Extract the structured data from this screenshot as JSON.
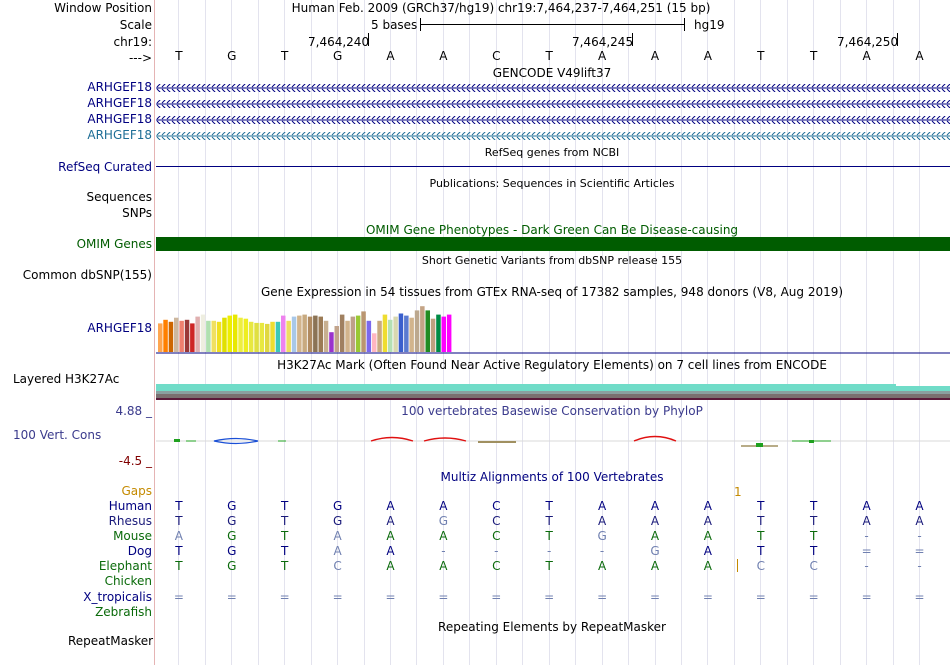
{
  "colors": {
    "navy": "#000080",
    "teal": "#1e6e96",
    "omim": "#005c00",
    "h3k27": "#70dcc8",
    "cons_label": "#3a3a8c",
    "cons_neg": "#800000",
    "gaps": "#c48a00",
    "green_species": "#0a6a0a",
    "rhesus": "#1a1a7a"
  },
  "header": {
    "window_position_label": "Window Position",
    "window_position_value": "Human Feb. 2009 (GRCh37/hg19)    chr19:7,464,237-7,464,251 (15 bp)",
    "scale_label": "Scale",
    "scale_value": "5 bases",
    "scale_assembly": "hg19",
    "chrom_label": "chr19:",
    "coords": [
      "7,464,240",
      "7,464,245",
      "7,464,250"
    ],
    "strand_label": "--->",
    "bases": [
      "T",
      "G",
      "T",
      "G",
      "A",
      "A",
      "C",
      "T",
      "A",
      "A",
      "A",
      "T",
      "T",
      "A",
      "A"
    ]
  },
  "gencode": {
    "title": "GENCODE V49lift37",
    "rows": [
      "ARHGEF18",
      "ARHGEF18",
      "ARHGEF18",
      "ARHGEF18"
    ]
  },
  "refseq": {
    "label": "RefSeq Curated",
    "title": "RefSeq genes from NCBI"
  },
  "publications": {
    "label": "Sequences",
    "title": "Publications: Sequences in Scientific Articles"
  },
  "snps_label": "SNPs",
  "omim": {
    "label": "OMIM Genes",
    "title": "OMIM Gene Phenotypes - Dark Green Can Be Disease-causing"
  },
  "dbsnp": {
    "label": "Common dbSNP(155)",
    "title": "Short Genetic Variants from dbSNP release 155"
  },
  "gtex": {
    "label": "ARHGEF18",
    "title": "Gene Expression in 54 tissues from GTEx RNA-seq of 17382 samples, 948 donors (V8, Aug 2019)",
    "levels": [
      0.55,
      0.62,
      0.58,
      0.66,
      0.6,
      0.62,
      0.55,
      0.68,
      0.72,
      0.6,
      0.6,
      0.58,
      0.66,
      0.7,
      0.72,
      0.66,
      0.64,
      0.58,
      0.56,
      0.56,
      0.54,
      0.58,
      0.58,
      0.7,
      0.6,
      0.68,
      0.7,
      0.72,
      0.68,
      0.7,
      0.68,
      0.6,
      0.38,
      0.5,
      0.72,
      0.6,
      0.68,
      0.7,
      0.78,
      0.6,
      0.36,
      0.6,
      0.72,
      0.62,
      0.68,
      0.74,
      0.7,
      0.66,
      0.8,
      0.88,
      0.8,
      0.64,
      0.72,
      0.68,
      0.72
    ]
  },
  "h3k27ac": {
    "label": "Layered H3K27Ac",
    "title": "H3K27Ac Mark (Often Found Near Active Regulatory Elements) on 7 cell lines from ENCODE"
  },
  "phylop": {
    "label": "100 Vert. Cons",
    "max_label": "4.88 _",
    "min_label": "-4.5 _",
    "title": "100 vertebrates Basewise Conservation by PhyloP"
  },
  "multiz": {
    "title": "Multiz Alignments of 100 Vertebrates",
    "gaps_label": "Gaps",
    "gaps_marker": "1",
    "species": [
      {
        "name": "Human",
        "bases": [
          "T",
          "G",
          "T",
          "G",
          "A",
          "A",
          "C",
          "T",
          "A",
          "A",
          "A",
          "T",
          "T",
          "A",
          "A"
        ]
      },
      {
        "name": "Rhesus",
        "bases": [
          "T",
          "G",
          "T",
          "G",
          "A",
          "G",
          "C",
          "T",
          "A",
          "A",
          "A",
          "T",
          "T",
          "A",
          "A"
        ]
      },
      {
        "name": "Mouse",
        "bases": [
          "A",
          "G",
          "T",
          "A",
          "A",
          "A",
          "C",
          "T",
          "G",
          "A",
          "A",
          "T",
          "T",
          "-",
          "-"
        ]
      },
      {
        "name": "Dog",
        "bases": [
          "T",
          "G",
          "T",
          "A",
          "A",
          "-",
          "-",
          "-",
          "-",
          "G",
          "A",
          "T",
          "T",
          "=",
          "="
        ]
      },
      {
        "name": "Elephant",
        "bases": [
          "T",
          "G",
          "T",
          "C",
          "A",
          "A",
          "C",
          "T",
          "A",
          "A",
          "A",
          "C",
          "C",
          "-",
          "-"
        ]
      },
      {
        "name": "Chicken",
        "bases": [
          "",
          "",
          "",
          "",
          "",
          "",
          "",
          "",
          "",
          "",
          "",
          "",
          "",
          "",
          ""
        ]
      },
      {
        "name": "X_tropicalis",
        "bases": [
          "=",
          "=",
          "=",
          "=",
          "=",
          "=",
          "=",
          "=",
          "=",
          "=",
          "=",
          "=",
          "=",
          "=",
          "="
        ]
      },
      {
        "name": "Zebrafish",
        "bases": [
          "",
          "",
          "",
          "",
          "",
          "",
          "",
          "",
          "",
          "",
          "",
          "",
          "",
          "",
          ""
        ]
      }
    ]
  },
  "repeatmasker": {
    "label": "RepeatMasker",
    "title": "Repeating Elements by RepeatMasker"
  }
}
